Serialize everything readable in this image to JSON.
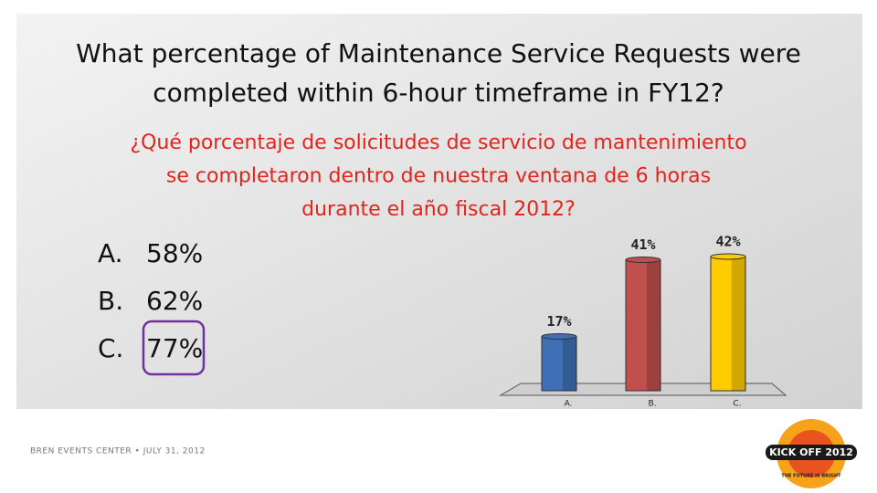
{
  "slide": {
    "title_lines": [
      "What percentage of Maintenance Service Requests were",
      "completed within 6-hour timeframe in FY12?"
    ],
    "subtitle_lines": [
      "¿Qué porcentaje de solicitudes de servicio de mantenimiento",
      "se completaron dentro de nuestra ventana de 6 horas",
      "durante el año fiscal 2012?"
    ],
    "options": [
      {
        "letter": "A.",
        "text": "58%"
      },
      {
        "letter": "B.",
        "text": "62%"
      },
      {
        "letter": "C.",
        "text": "77%"
      }
    ],
    "footer": "BREN EVENTS CENTER • JULY 31, 2012",
    "logo": {
      "title": "KICK OFF 2012",
      "tagline": "THE FUTURE IS BRIGHT"
    }
  },
  "chart_data": {
    "type": "bar",
    "categories": [
      "A.",
      "B.",
      "C."
    ],
    "values": [
      17,
      41,
      42
    ],
    "value_labels": [
      "17%",
      "41%",
      "42%"
    ],
    "colors": [
      "#3f6fb5",
      "#c0504d",
      "#ffcc00"
    ]
  }
}
